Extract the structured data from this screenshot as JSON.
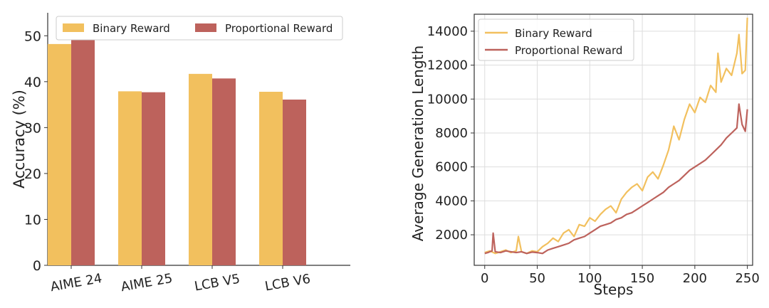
{
  "chart_data": [
    {
      "type": "bar",
      "categories": [
        "AIME 24",
        "AIME 25",
        "LCB V5",
        "LCB V6"
      ],
      "series": [
        {
          "name": "Binary Reward",
          "values": [
            48.2,
            37.9,
            41.7,
            37.8
          ]
        },
        {
          "name": "Proportional Reward",
          "values": [
            49.3,
            37.7,
            40.7,
            36.1
          ]
        }
      ],
      "title": "",
      "xlabel": "",
      "ylabel": "Accuracy (%)",
      "ylim": [
        0,
        55
      ],
      "yticks": [
        0,
        10,
        20,
        30,
        40,
        50
      ],
      "legend": "top",
      "grid": false,
      "colors": {
        "Binary Reward": "#F2C05E",
        "Proportional Reward": "#BD625C"
      }
    },
    {
      "type": "line",
      "title": "",
      "xlabel": "Steps",
      "ylabel": "Average Generation Length",
      "xlim": [
        -10,
        255
      ],
      "ylim": [
        200,
        15000
      ],
      "xticks": [
        0,
        50,
        100,
        150,
        200,
        250
      ],
      "yticks": [
        2000,
        4000,
        6000,
        8000,
        10000,
        12000,
        14000
      ],
      "legend": "top-left",
      "grid": true,
      "colors": {
        "Binary Reward": "#F2C05E",
        "Proportional Reward": "#BD625C"
      },
      "series": [
        {
          "name": "Binary Reward",
          "x": [
            0,
            5,
            10,
            15,
            20,
            25,
            30,
            32,
            35,
            40,
            45,
            50,
            55,
            60,
            65,
            70,
            75,
            80,
            85,
            90,
            95,
            100,
            105,
            110,
            115,
            120,
            125,
            130,
            135,
            140,
            145,
            150,
            155,
            160,
            165,
            170,
            175,
            178,
            180,
            185,
            190,
            195,
            200,
            205,
            210,
            215,
            220,
            222,
            225,
            230,
            235,
            240,
            242,
            245,
            248,
            250
          ],
          "y": [
            950,
            1050,
            900,
            1000,
            1100,
            950,
            1050,
            1900,
            1000,
            900,
            1050,
            1000,
            1300,
            1500,
            1800,
            1600,
            2100,
            2300,
            1900,
            2600,
            2500,
            3000,
            2800,
            3200,
            3500,
            3700,
            3300,
            4100,
            4500,
            4800,
            5000,
            4600,
            5400,
            5700,
            5300,
            6100,
            7000,
            7800,
            8400,
            7600,
            8800,
            9700,
            9200,
            10100,
            9800,
            10800,
            10400,
            12700,
            11000,
            11800,
            11400,
            12700,
            13800,
            11500,
            11700,
            14800
          ]
        },
        {
          "name": "Proportional Reward",
          "x": [
            0,
            3,
            5,
            7,
            8,
            10,
            15,
            20,
            25,
            30,
            35,
            40,
            45,
            50,
            55,
            60,
            65,
            70,
            75,
            80,
            85,
            90,
            95,
            100,
            105,
            110,
            115,
            120,
            125,
            130,
            135,
            140,
            145,
            150,
            155,
            160,
            165,
            170,
            175,
            180,
            185,
            190,
            195,
            200,
            205,
            210,
            215,
            220,
            225,
            230,
            235,
            240,
            242,
            245,
            248,
            250
          ],
          "y": [
            900,
            950,
            1000,
            1050,
            2100,
            1000,
            950,
            1050,
            1000,
            950,
            1000,
            900,
            980,
            950,
            900,
            1100,
            1200,
            1300,
            1400,
            1500,
            1700,
            1800,
            1900,
            2100,
            2300,
            2500,
            2600,
            2700,
            2900,
            3000,
            3200,
            3300,
            3500,
            3700,
            3900,
            4100,
            4300,
            4500,
            4800,
            5000,
            5200,
            5500,
            5800,
            6000,
            6200,
            6400,
            6700,
            7000,
            7300,
            7700,
            8000,
            8300,
            9700,
            8500,
            8100,
            9400
          ]
        }
      ]
    }
  ]
}
